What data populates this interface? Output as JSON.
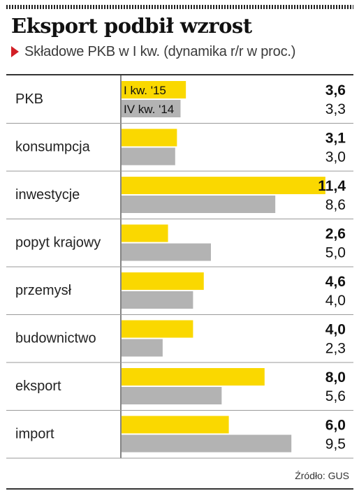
{
  "header": {
    "title": "Eksport podbił wzrost",
    "subtitle": "Składowe PKB w I kw. (dynamika r/r w proc.)"
  },
  "source": "Źródło: GUS",
  "colors": {
    "current": "#fad800",
    "previous": "#b3b3b3",
    "accent": "#d21f26"
  },
  "chart_data": {
    "type": "bar",
    "orientation": "horizontal",
    "title": "Eksport podbił wzrost",
    "subtitle": "Składowe PKB w I kw. (dynamika r/r w proc.)",
    "categories": [
      "PKB",
      "konsumpcja",
      "inwestycje",
      "popyt krajowy",
      "przemysł",
      "budownictwo",
      "eksport",
      "import"
    ],
    "series": [
      {
        "name": "I kw. '15",
        "values": [
          3.6,
          3.1,
          11.4,
          2.6,
          4.6,
          4.0,
          8.0,
          6.0
        ],
        "labels": [
          "3,6",
          "3,1",
          "11,4",
          "2,6",
          "4,6",
          "4,0",
          "8,0",
          "6,0"
        ]
      },
      {
        "name": "IV kw. '14",
        "values": [
          3.3,
          3.0,
          8.6,
          5.0,
          4.0,
          2.3,
          5.6,
          9.5
        ],
        "labels": [
          "3,3",
          "3,0",
          "8,6",
          "5,0",
          "4,0",
          "2,3",
          "5,6",
          "9,5"
        ]
      }
    ],
    "xlim": [
      0,
      12.5
    ],
    "legend": "inside-first-group",
    "grid": false,
    "source": "Źródło: GUS"
  }
}
